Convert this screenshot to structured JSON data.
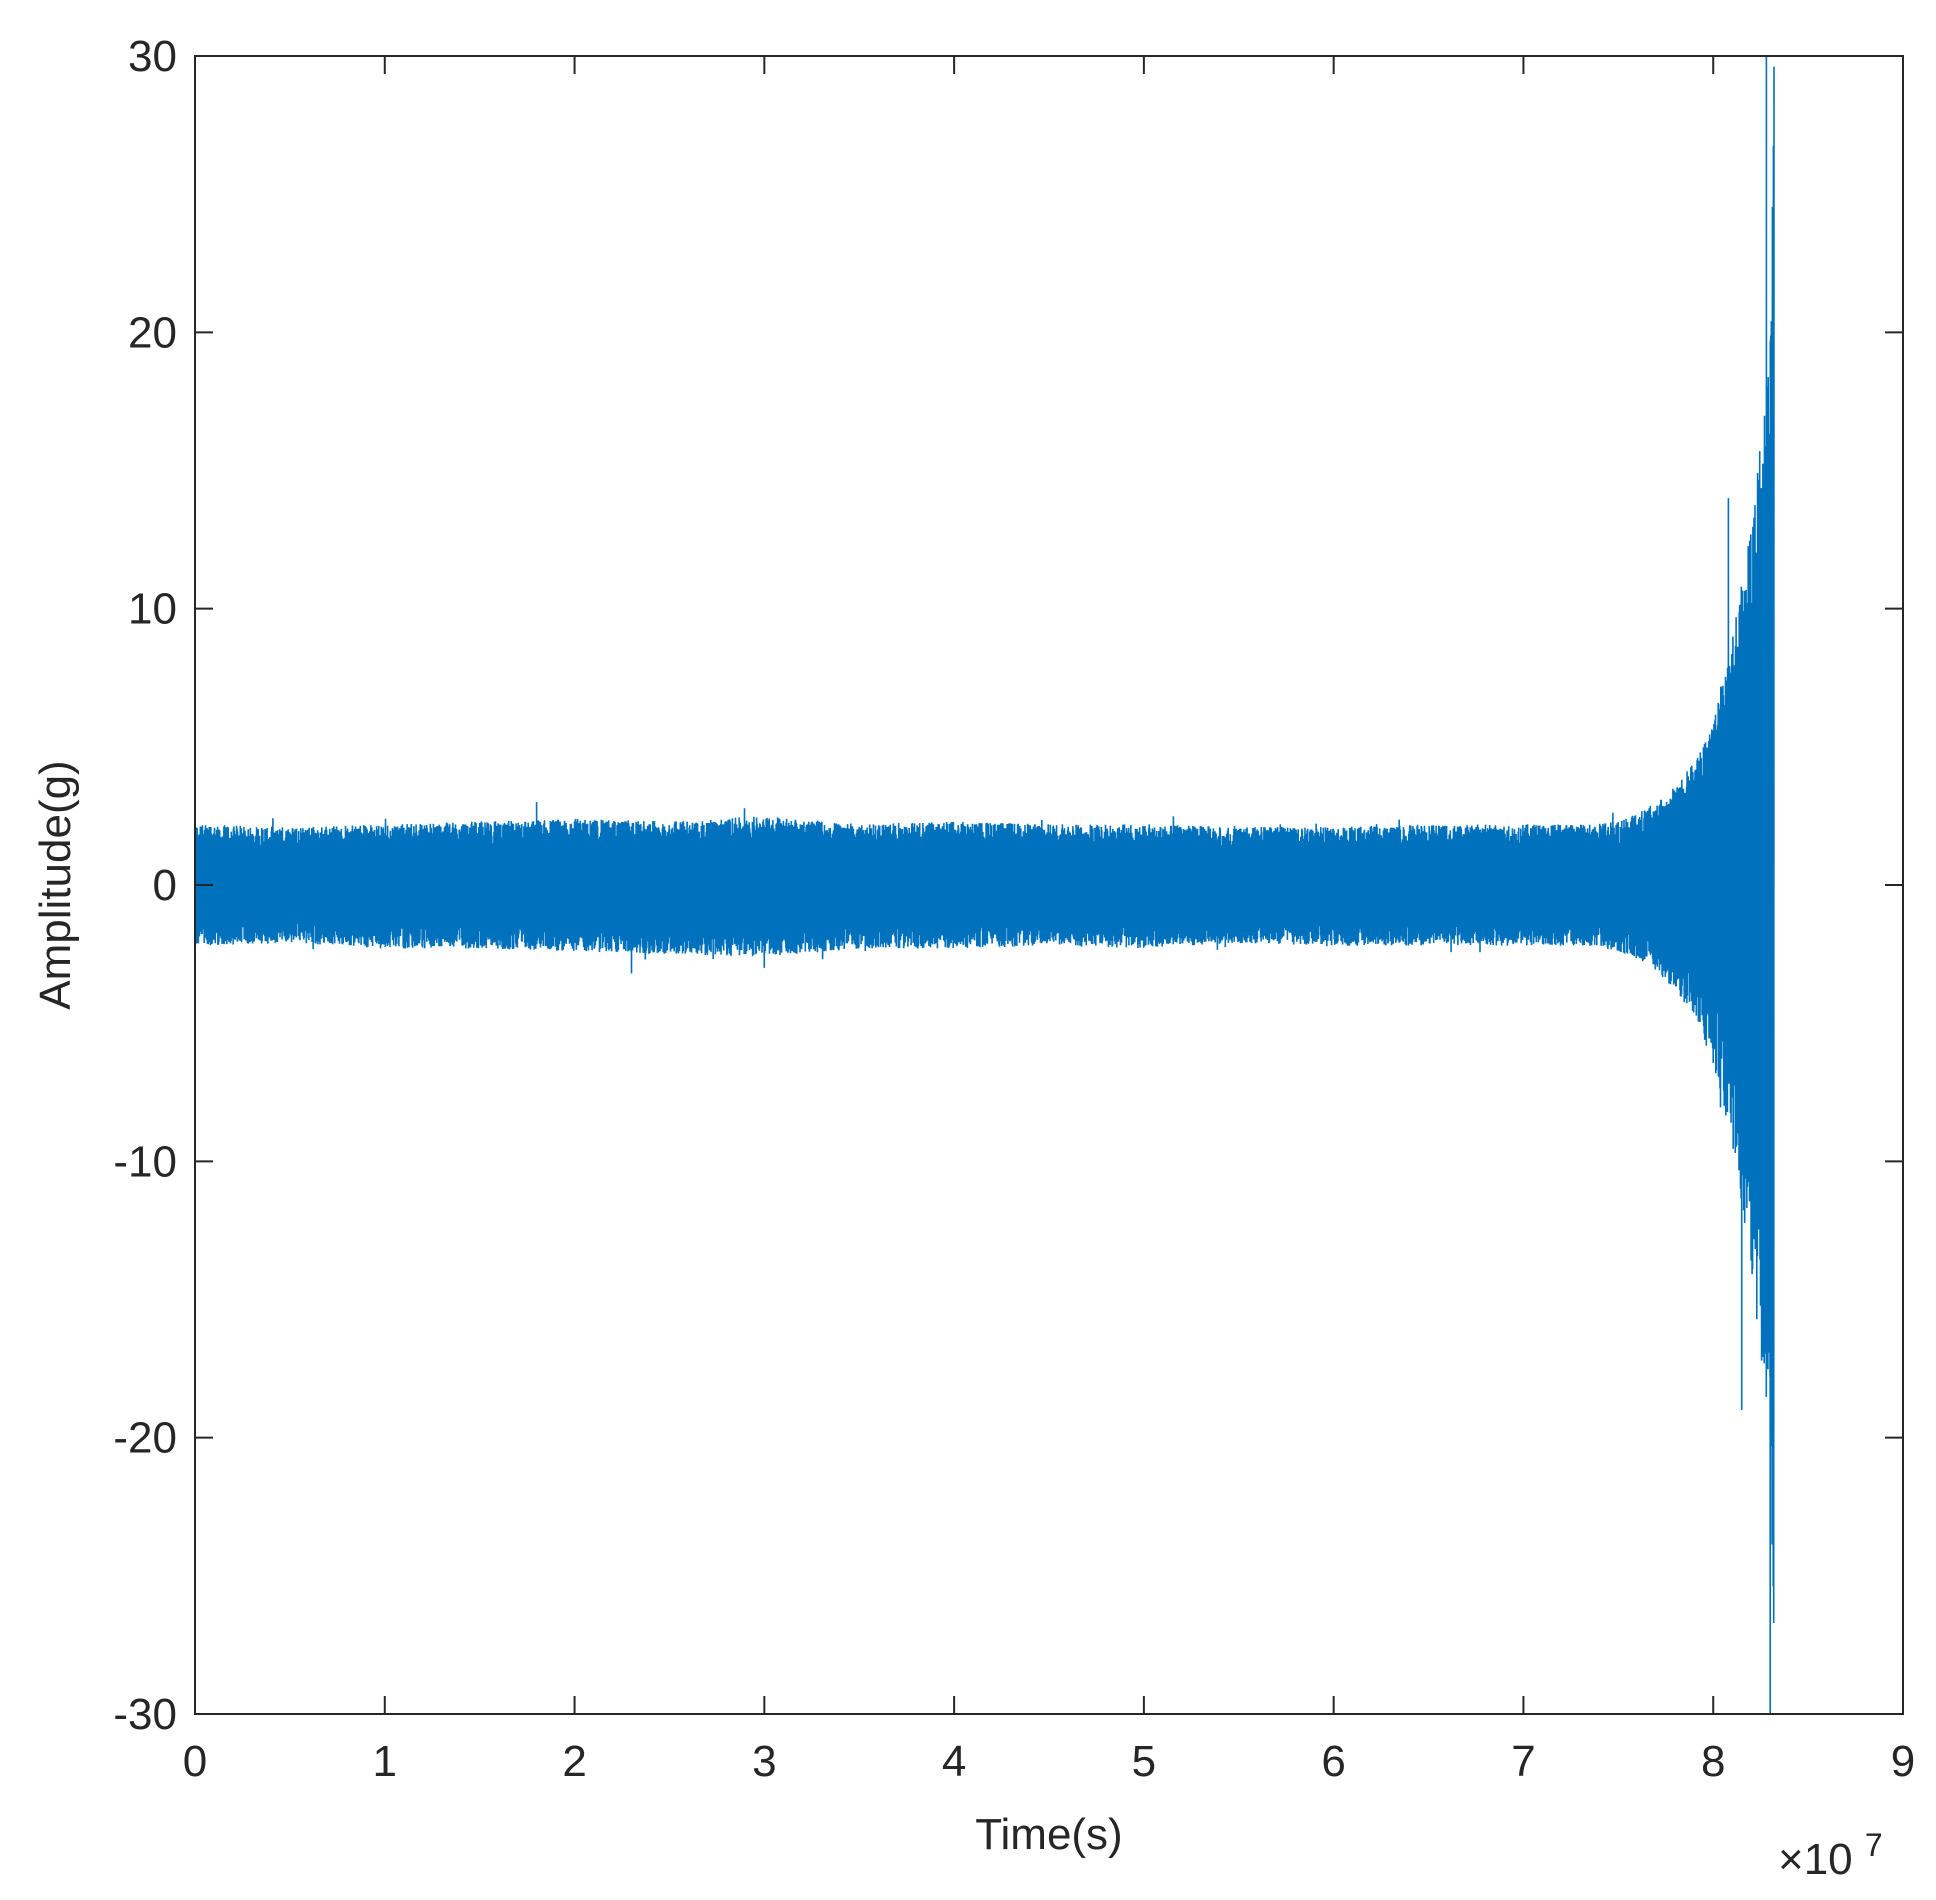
{
  "chart_data": {
    "type": "line",
    "title": "",
    "xlabel": "Time(s)",
    "ylabel": "Amplitude(g)",
    "xlim": [
      0,
      9
    ],
    "ylim": [
      -30,
      30
    ],
    "x_multiplier_label": "×10",
    "x_multiplier_exponent": "7",
    "x_ticks": [
      "0",
      "1",
      "2",
      "3",
      "4",
      "5",
      "6",
      "7",
      "8",
      "9"
    ],
    "y_ticks": [
      "-30",
      "-20",
      "-10",
      "0",
      "10",
      "20",
      "30"
    ],
    "grid": false,
    "legend": "none",
    "series": [
      {
        "color": "#0072BD",
        "style": "dense vibration signal",
        "envelope_x": [
          0,
          0.5,
          1,
          1.5,
          2,
          2.5,
          3,
          3.5,
          4,
          4.5,
          5,
          5.5,
          6,
          6.5,
          7,
          7.3,
          7.5,
          7.6,
          7.7,
          7.8,
          7.9,
          8.0,
          8.1,
          8.15,
          8.2,
          8.25,
          8.3,
          8.32
        ],
        "envelope_upper": [
          2.2,
          2.1,
          2.2,
          2.3,
          2.4,
          2.3,
          2.5,
          2.2,
          2.3,
          2.2,
          2.2,
          2.1,
          2.1,
          2.2,
          2.2,
          2.2,
          2.3,
          2.6,
          3.0,
          3.6,
          4.5,
          6.0,
          9.0,
          11.0,
          13.0,
          16.0,
          20.0,
          30.0
        ],
        "envelope_lower": [
          -2.2,
          -2.1,
          -2.3,
          -2.3,
          -2.4,
          -2.5,
          -2.6,
          -2.3,
          -2.3,
          -2.2,
          -2.3,
          -2.1,
          -2.2,
          -2.2,
          -2.2,
          -2.2,
          -2.4,
          -2.7,
          -3.2,
          -3.8,
          -4.8,
          -6.5,
          -9.5,
          -11.5,
          -14.0,
          -17.0,
          -22.0,
          -30.0
        ],
        "peaks": [
          {
            "x": 1.8,
            "y": 3.0
          },
          {
            "x": 2.3,
            "y": -3.2
          },
          {
            "x": 3.0,
            "y": -3.0
          },
          {
            "x": 8.08,
            "y": 14.0
          },
          {
            "x": 8.15,
            "y": -19.0
          },
          {
            "x": 8.28,
            "y": 30.0
          },
          {
            "x": 8.3,
            "y": -30.0
          }
        ]
      }
    ]
  }
}
